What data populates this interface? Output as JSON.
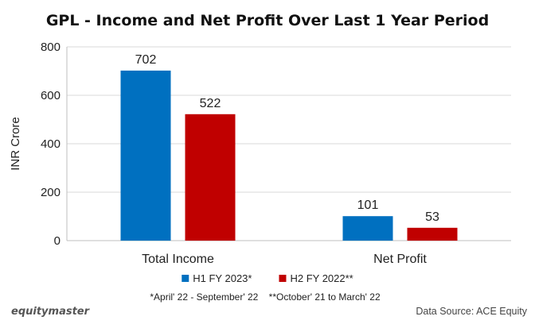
{
  "chart_data": {
    "type": "bar",
    "title": "GPL - Income and Net Profit Over Last 1 Year Period",
    "ylabel": "INR Crore",
    "xlabel": "",
    "categories": [
      "Total Income",
      "Net Profit"
    ],
    "series": [
      {
        "name": "H1 FY 2023*",
        "values": [
          702,
          101
        ],
        "color": "#0070C0"
      },
      {
        "name": "H2 FY 2022**",
        "values": [
          522,
          53
        ],
        "color": "#C00000"
      }
    ],
    "ylim": [
      0,
      800
    ],
    "yticks": [
      0,
      200,
      400,
      600,
      800
    ],
    "grid": true,
    "legend_position": "bottom"
  },
  "footnote": "*April' 22 - September' 22    **October' 21 to March' 22",
  "brand": "equitymaster",
  "source": "Data Source: ACE Equity"
}
